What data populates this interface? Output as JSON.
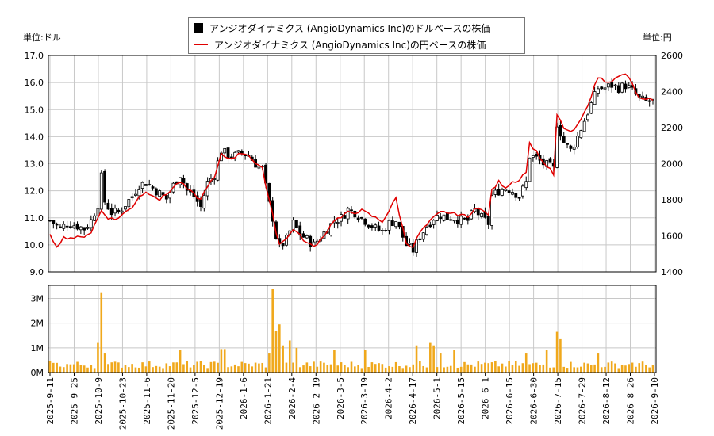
{
  "chart_data": [
    {
      "type": "candlestick+line",
      "legend": [
        {
          "label": "アンジオダイナミクス (AngioDynamics Inc)のドルベースの株価",
          "color": "#000000"
        },
        {
          "label": "アンジオダイナミクス (AngioDynamics Inc)の円ベースの株価",
          "color": "#e00000"
        }
      ],
      "y_left_label": "単位:ドル",
      "y_right_label": "単位:円",
      "ylim_left": [
        9.0,
        17.0
      ],
      "ylim_right": [
        1400,
        2600
      ],
      "yticks_left": [
        "9.0",
        "10.0",
        "11.0",
        "12.0",
        "13.0",
        "14.0",
        "15.0",
        "16.0",
        "17.0"
      ],
      "yticks_right": [
        "1400",
        "1600",
        "1800",
        "2000",
        "2200",
        "2400",
        "2600"
      ],
      "grid": true,
      "xticks": [
        "2025-9-11",
        "2025-9-25",
        "2025-10-9",
        "2025-10-23",
        "2025-11-6",
        "2025-11-20",
        "2025-12-5",
        "2025-12-19",
        "2026-1-6",
        "2026-1-21",
        "2026-2-4",
        "2026-2-19",
        "2026-3-5",
        "2026-3-19",
        "2026-4-2",
        "2026-4-17",
        "2026-5-1",
        "2026-5-15",
        "2026-6-1",
        "2026-6-15",
        "2026-6-30",
        "2026-7-15",
        "2026-7-29",
        "2026-8-12",
        "2026-8-26",
        "2026-9-10"
      ],
      "usd_keypoints": [
        [
          0,
          10.9
        ],
        [
          3,
          10.6
        ],
        [
          5,
          10.8
        ],
        [
          8,
          10.7
        ],
        [
          10,
          10.6
        ],
        [
          12,
          10.9
        ],
        [
          14,
          11.5
        ],
        [
          15,
          12.5
        ],
        [
          16,
          11.6
        ],
        [
          18,
          11.2
        ],
        [
          20,
          11.2
        ],
        [
          22,
          11.5
        ],
        [
          24,
          11.8
        ],
        [
          26,
          12.2
        ],
        [
          28,
          12.3
        ],
        [
          30,
          12.1
        ],
        [
          32,
          11.9
        ],
        [
          34,
          11.7
        ],
        [
          36,
          12.2
        ],
        [
          38,
          12.6
        ],
        [
          40,
          12.0
        ],
        [
          42,
          11.8
        ],
        [
          44,
          11.4
        ],
        [
          46,
          12.3
        ],
        [
          48,
          12.6
        ],
        [
          50,
          13.5
        ],
        [
          52,
          13.3
        ],
        [
          54,
          13.3
        ],
        [
          56,
          13.4
        ],
        [
          58,
          13.3
        ],
        [
          60,
          13.0
        ],
        [
          62,
          12.8
        ],
        [
          64,
          11.5
        ],
        [
          65,
          11.0
        ],
        [
          66,
          10.3
        ],
        [
          67,
          9.9
        ],
        [
          69,
          10.2
        ],
        [
          71,
          10.8
        ],
        [
          73,
          10.4
        ],
        [
          75,
          10.2
        ],
        [
          77,
          10.0
        ],
        [
          79,
          10.3
        ],
        [
          81,
          10.6
        ],
        [
          83,
          10.9
        ],
        [
          85,
          11.0
        ],
        [
          87,
          11.3
        ],
        [
          89,
          11.2
        ],
        [
          91,
          11.0
        ],
        [
          93,
          10.8
        ],
        [
          95,
          10.6
        ],
        [
          97,
          10.5
        ],
        [
          99,
          10.8
        ],
        [
          101,
          10.9
        ],
        [
          102,
          10.6
        ],
        [
          104,
          10.0
        ],
        [
          106,
          9.8
        ],
        [
          108,
          10.3
        ],
        [
          110,
          10.7
        ],
        [
          112,
          11.0
        ],
        [
          114,
          11.1
        ],
        [
          116,
          11.0
        ],
        [
          118,
          11.0
        ],
        [
          120,
          10.9
        ],
        [
          122,
          10.9
        ],
        [
          124,
          11.3
        ],
        [
          126,
          11.0
        ],
        [
          128,
          10.8
        ],
        [
          129,
          11.8
        ],
        [
          131,
          12.0
        ],
        [
          133,
          12.1
        ],
        [
          135,
          12.0
        ],
        [
          137,
          11.8
        ],
        [
          139,
          12.3
        ],
        [
          140,
          13.3
        ],
        [
          142,
          13.2
        ],
        [
          144,
          13.0
        ],
        [
          146,
          12.9
        ],
        [
          147,
          12.8
        ],
        [
          148,
          14.5
        ],
        [
          150,
          13.8
        ],
        [
          152,
          13.5
        ],
        [
          154,
          14.0
        ],
        [
          156,
          14.6
        ],
        [
          158,
          15.2
        ],
        [
          160,
          15.8
        ],
        [
          162,
          15.8
        ],
        [
          164,
          15.9
        ],
        [
          166,
          15.8
        ],
        [
          168,
          15.9
        ],
        [
          170,
          15.7
        ],
        [
          172,
          15.4
        ],
        [
          174,
          15.3
        ],
        [
          176,
          15.3
        ]
      ],
      "jpy_keypoints": [
        [
          0,
          1600
        ],
        [
          2,
          1545
        ],
        [
          4,
          1590
        ],
        [
          7,
          1590
        ],
        [
          9,
          1590
        ],
        [
          12,
          1620
        ],
        [
          15,
          1740
        ],
        [
          17,
          1700
        ],
        [
          19,
          1690
        ],
        [
          22,
          1730
        ],
        [
          24,
          1760
        ],
        [
          26,
          1820
        ],
        [
          28,
          1840
        ],
        [
          30,
          1830
        ],
        [
          32,
          1800
        ],
        [
          34,
          1830
        ],
        [
          36,
          1870
        ],
        [
          38,
          1900
        ],
        [
          40,
          1860
        ],
        [
          42,
          1830
        ],
        [
          44,
          1800
        ],
        [
          46,
          1880
        ],
        [
          48,
          1920
        ],
        [
          50,
          2050
        ],
        [
          52,
          2030
        ],
        [
          54,
          2040
        ],
        [
          56,
          2060
        ],
        [
          58,
          2050
        ],
        [
          60,
          2000
        ],
        [
          62,
          1970
        ],
        [
          64,
          1800
        ],
        [
          65,
          1720
        ],
        [
          66,
          1620
        ],
        [
          67,
          1560
        ],
        [
          69,
          1580
        ],
        [
          71,
          1640
        ],
        [
          73,
          1600
        ],
        [
          75,
          1560
        ],
        [
          77,
          1540
        ],
        [
          79,
          1580
        ],
        [
          81,
          1630
        ],
        [
          83,
          1690
        ],
        [
          85,
          1700
        ],
        [
          87,
          1730
        ],
        [
          89,
          1730
        ],
        [
          91,
          1740
        ],
        [
          93,
          1720
        ],
        [
          95,
          1700
        ],
        [
          97,
          1680
        ],
        [
          99,
          1740
        ],
        [
          101,
          1810
        ],
        [
          102,
          1720
        ],
        [
          104,
          1560
        ],
        [
          106,
          1540
        ],
        [
          108,
          1620
        ],
        [
          110,
          1660
        ],
        [
          112,
          1700
        ],
        [
          114,
          1730
        ],
        [
          116,
          1730
        ],
        [
          118,
          1720
        ],
        [
          120,
          1720
        ],
        [
          122,
          1700
        ],
        [
          124,
          1760
        ],
        [
          126,
          1740
        ],
        [
          128,
          1720
        ],
        [
          129,
          1850
        ],
        [
          131,
          1900
        ],
        [
          133,
          1870
        ],
        [
          135,
          1900
        ],
        [
          137,
          1910
        ],
        [
          139,
          1960
        ],
        [
          140,
          2110
        ],
        [
          142,
          2070
        ],
        [
          144,
          2000
        ],
        [
          146,
          1970
        ],
        [
          147,
          1930
        ],
        [
          148,
          2270
        ],
        [
          150,
          2200
        ],
        [
          152,
          2170
        ],
        [
          154,
          2210
        ],
        [
          156,
          2280
        ],
        [
          158,
          2380
        ],
        [
          160,
          2480
        ],
        [
          162,
          2460
        ],
        [
          164,
          2460
        ],
        [
          166,
          2480
        ],
        [
          168,
          2500
        ],
        [
          170,
          2440
        ],
        [
          172,
          2360
        ],
        [
          174,
          2350
        ],
        [
          176,
          2360
        ]
      ],
      "bars": 177
    },
    {
      "type": "bar",
      "title": "",
      "ylim": [
        0,
        3400000
      ],
      "yticks": [
        "0M",
        "1M",
        "2M",
        "3M"
      ],
      "spikes": [
        [
          0,
          450000
        ],
        [
          14,
          1200000
        ],
        [
          15,
          3250000
        ],
        [
          16,
          800000
        ],
        [
          38,
          900000
        ],
        [
          50,
          950000
        ],
        [
          51,
          950000
        ],
        [
          64,
          800000
        ],
        [
          65,
          3400000
        ],
        [
          66,
          1700000
        ],
        [
          67,
          1950000
        ],
        [
          68,
          1100000
        ],
        [
          70,
          1300000
        ],
        [
          72,
          1000000
        ],
        [
          83,
          900000
        ],
        [
          92,
          900000
        ],
        [
          107,
          1100000
        ],
        [
          111,
          1200000
        ],
        [
          112,
          1100000
        ],
        [
          114,
          800000
        ],
        [
          118,
          900000
        ],
        [
          139,
          800000
        ],
        [
          145,
          900000
        ],
        [
          148,
          1650000
        ],
        [
          149,
          1350000
        ],
        [
          160,
          800000
        ],
        [
          170,
          400000
        ]
      ],
      "base_volume": 320000
    }
  ]
}
